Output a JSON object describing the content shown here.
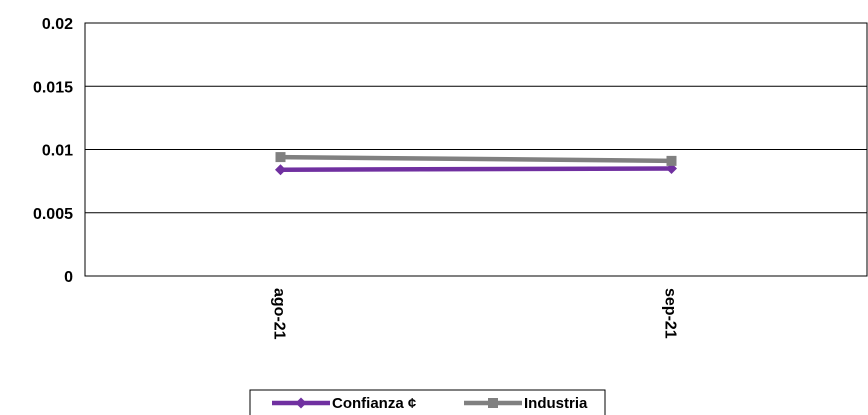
{
  "chart_data": {
    "type": "line",
    "categories": [
      "ago-21",
      "sep-21"
    ],
    "series": [
      {
        "name": "Confianza ¢",
        "values": [
          0.0084,
          0.0085
        ],
        "color": "#7030A0",
        "marker": "diamond"
      },
      {
        "name": "Industria",
        "values": [
          0.0094,
          0.0091
        ],
        "color": "#808080",
        "marker": "square"
      }
    ],
    "ylim": [
      0,
      0.02
    ],
    "yticks": [
      "0",
      "0.005",
      "0.01",
      "0.015",
      "0.02"
    ],
    "ytick_values": [
      0,
      0.005,
      0.01,
      0.015,
      0.02
    ],
    "grid": true,
    "legend_position": "bottom",
    "title": "",
    "xlabel": "",
    "ylabel": ""
  }
}
